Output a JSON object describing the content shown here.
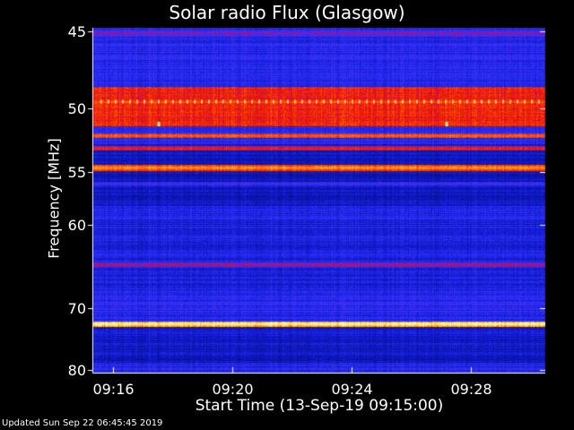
{
  "chart_data": {
    "type": "heatmap",
    "title": "Solar radio Flux (Glasgow)",
    "xlabel": "Start Time (13-Sep-19 09:15:00)",
    "ylabel": "Frequency [MHz]",
    "x_ticks": [
      "09:16",
      "09:20",
      "09:24",
      "09:28"
    ],
    "x_tick_minutes": [
      16,
      20,
      24,
      28
    ],
    "xlim_minutes": [
      15.35,
      30.5
    ],
    "y_ticks": [
      45,
      50,
      55,
      60,
      70,
      80
    ],
    "y_scale": "reciprocal",
    "ylim": [
      44.8,
      80.5
    ],
    "colormap": "dark blue to blue to red to orange to yellow to white",
    "bands_mhz": [
      {
        "freq_mhz": 45.1,
        "level": 0.55
      },
      {
        "freq_mhz": 49.5,
        "level": 0.8
      },
      {
        "freq_mhz": 51.1,
        "level": 0.75
      },
      {
        "freq_mhz": 52.0,
        "level": 0.82
      },
      {
        "freq_mhz": 53.0,
        "level": 0.72
      },
      {
        "freq_mhz": 54.6,
        "level": 0.88
      },
      {
        "freq_mhz": 56.0,
        "level": 0.45
      },
      {
        "freq_mhz": 59.3,
        "level": 0.4
      },
      {
        "freq_mhz": 64.4,
        "level": 0.6
      },
      {
        "freq_mhz": 72.3,
        "level": 1.0
      }
    ]
  },
  "footer": {
    "updated": "Updated Sun Sep 22 06:45:45 2019"
  }
}
